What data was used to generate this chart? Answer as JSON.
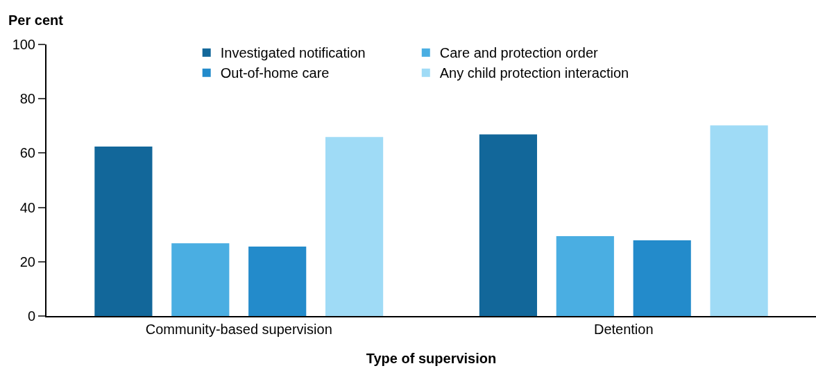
{
  "chart_data": {
    "type": "bar",
    "ylabel": "Per cent",
    "xlabel": "Type of supervision",
    "categories": [
      "Community-based supervision",
      "Detention"
    ],
    "series": [
      {
        "name": "Investigated notification",
        "color": "#12679a",
        "values": [
          62.4,
          66.9
        ]
      },
      {
        "name": "Care and protection order",
        "color": "#4aaee2",
        "values": [
          26.8,
          29.4
        ]
      },
      {
        "name": "Out-of-home care",
        "color": "#238bcb",
        "values": [
          25.6,
          27.9
        ]
      },
      {
        "name": "Any child protection interaction",
        "color": "#9fdbf6",
        "values": [
          65.9,
          70.2
        ]
      }
    ],
    "ylim": [
      0,
      100
    ],
    "yticks": [
      0,
      20,
      40,
      60,
      80,
      100
    ],
    "legend": "top"
  }
}
